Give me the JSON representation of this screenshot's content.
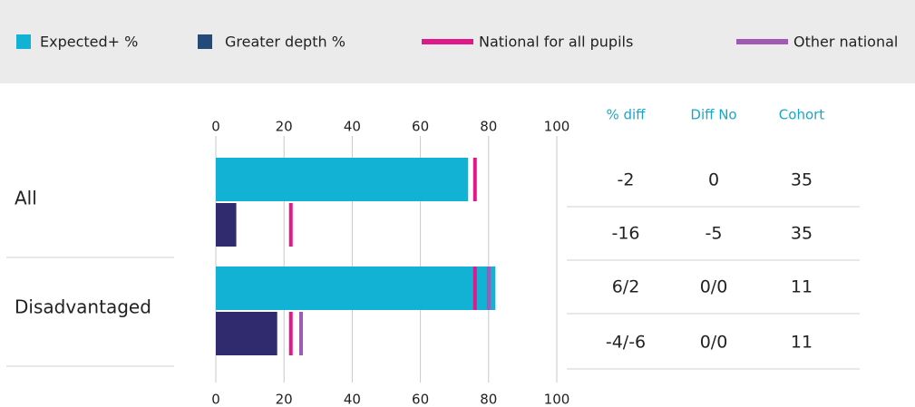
{
  "chart_data": {
    "type": "bar",
    "categories": [
      "All",
      "Disadvantaged"
    ],
    "series": [
      {
        "name": "Expected+ %",
        "color": "#12b2d4",
        "values": [
          74,
          82
        ]
      },
      {
        "name": "Greater depth %",
        "color": "#2f2b6e",
        "legend_color": "#254a7a",
        "values": [
          6,
          18
        ]
      },
      {
        "name": "National for all pupils",
        "color": "#e0198a",
        "values": [
          [
            76,
            22
          ],
          [
            76,
            22
          ]
        ]
      },
      {
        "name": "Other national",
        "color": "#a05ab5",
        "values": [
          [
            null,
            null
          ],
          [
            80,
            25
          ]
        ]
      }
    ],
    "xlim": [
      0,
      100
    ],
    "xticks": [
      0,
      20,
      40,
      60,
      80,
      100
    ],
    "grid": true
  },
  "table": {
    "columns": [
      "% diff",
      "Diff No",
      "Cohort"
    ],
    "rows": [
      [
        "-2",
        "0",
        "35"
      ],
      [
        "-16",
        "-5",
        "35"
      ],
      [
        "6/2",
        "0/0",
        "11"
      ],
      [
        "-4/-6",
        "0/0",
        "11"
      ]
    ]
  }
}
